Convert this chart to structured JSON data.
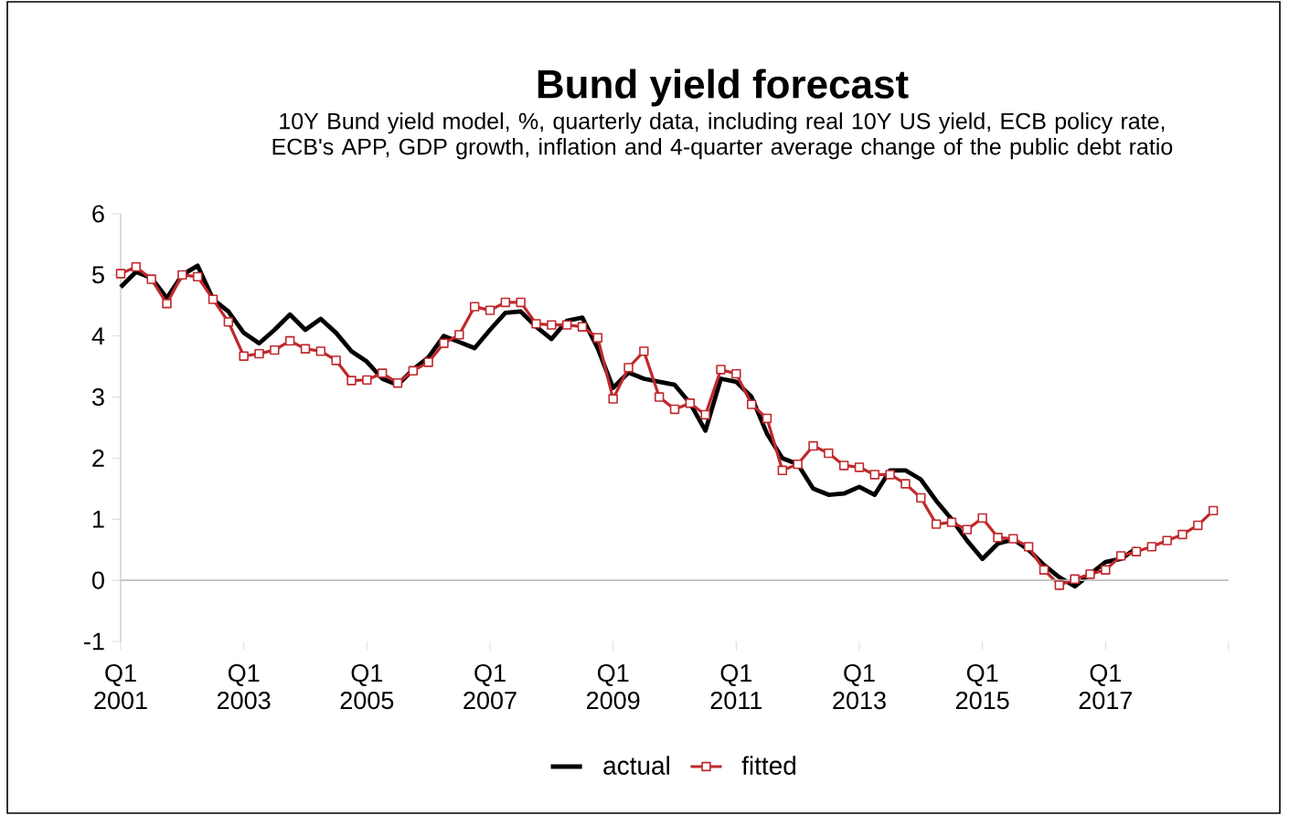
{
  "chart_data": {
    "type": "line",
    "title": "Bund yield forecast",
    "subtitle": "10Y Bund yield model, %, quarterly data, including real 10Y US yield, ECB policy rate, ECB's APP, GDP growth, inflation and 4-quarter average change of the public debt ratio",
    "categories": [
      "Q1 2001",
      null,
      null,
      null,
      null,
      null,
      null,
      null,
      "Q1 2003",
      null,
      null,
      null,
      null,
      null,
      null,
      null,
      "Q1 2005",
      null,
      null,
      null,
      null,
      null,
      null,
      null,
      "Q1 2007",
      null,
      null,
      null,
      null,
      null,
      null,
      null,
      "Q1 2009",
      null,
      null,
      null,
      null,
      null,
      null,
      null,
      "Q1 2011",
      null,
      null,
      null,
      null,
      null,
      null,
      null,
      "Q1 2013",
      null,
      null,
      null,
      null,
      null,
      null,
      null,
      "Q1 2015",
      null,
      null,
      null,
      null,
      null,
      null,
      null,
      "Q1 2017",
      null,
      null,
      null,
      null,
      null,
      null,
      null,
      null
    ],
    "series": [
      {
        "name": "actual",
        "color": "#000000",
        "marker": "none",
        "values": [
          4.8,
          5.05,
          4.95,
          4.62,
          5.0,
          5.15,
          4.6,
          4.4,
          4.05,
          3.88,
          4.1,
          4.35,
          4.1,
          4.28,
          4.05,
          3.75,
          3.58,
          3.3,
          3.2,
          3.45,
          3.65,
          4.0,
          3.9,
          3.8,
          4.1,
          4.38,
          4.4,
          4.15,
          3.95,
          4.25,
          4.3,
          3.8,
          3.15,
          3.4,
          3.3,
          3.25,
          3.2,
          2.9,
          2.45,
          3.3,
          3.25,
          3.0,
          2.4,
          2.0,
          1.9,
          1.5,
          1.4,
          1.42,
          1.53,
          1.4,
          1.8,
          1.8,
          1.65,
          1.3,
          1.0,
          0.65,
          0.35,
          0.6,
          0.67,
          0.5,
          0.25,
          0.05,
          -0.1,
          0.1,
          0.3,
          0.35,
          0.52,
          null,
          null,
          null,
          null,
          null,
          null
        ]
      },
      {
        "name": "fitted",
        "color": "#c0282c",
        "marker": "square",
        "values": [
          5.02,
          5.13,
          4.93,
          4.53,
          5.0,
          4.97,
          4.6,
          4.23,
          3.67,
          3.71,
          3.77,
          3.92,
          3.79,
          3.75,
          3.6,
          3.27,
          3.28,
          3.39,
          3.23,
          3.43,
          3.57,
          3.88,
          4.02,
          4.48,
          4.42,
          4.55,
          4.55,
          4.2,
          4.18,
          4.18,
          4.15,
          3.97,
          2.97,
          3.48,
          3.75,
          3.0,
          2.8,
          2.9,
          2.71,
          3.45,
          3.38,
          2.88,
          2.65,
          1.8,
          1.9,
          2.2,
          2.08,
          1.88,
          1.85,
          1.73,
          1.73,
          1.58,
          1.35,
          0.92,
          0.95,
          0.83,
          1.02,
          0.7,
          0.68,
          0.55,
          0.17,
          -0.08,
          0.02,
          0.1,
          0.17,
          0.4,
          0.47,
          0.55,
          0.65,
          0.75,
          0.9,
          1.14,
          null
        ]
      }
    ],
    "ylim": [
      -1,
      6
    ],
    "yticks": [
      -1,
      0,
      1,
      2,
      3,
      4,
      5,
      6
    ],
    "ref_lines": [
      {
        "axis": "y",
        "value": 0,
        "color": "#bfbfbf"
      }
    ],
    "grid": false,
    "legend": "bottom",
    "line_style": "solid"
  }
}
